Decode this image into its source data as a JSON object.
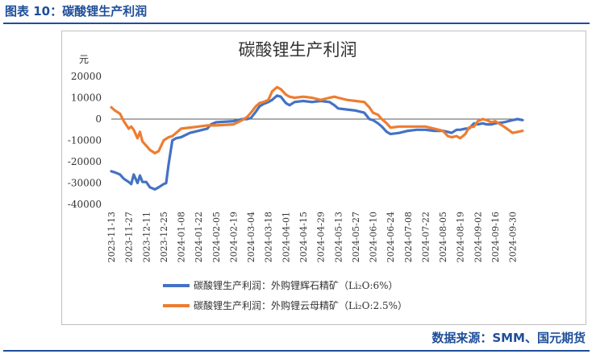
{
  "caption": "图表 10：碳酸锂生产利润",
  "source": "数据来源：SMM、国元期货",
  "colors": {
    "series1": "#4472C4",
    "series2": "#ED7D31",
    "axis": "#595959",
    "frame": "#bfbfbf",
    "accent": "#1f4e9a"
  },
  "chart_data": {
    "type": "line",
    "title": "碳酸锂生产利润",
    "ylabel": "元",
    "xlabel": "",
    "ylim": [
      -40000,
      20000
    ],
    "yticks": [
      -40000,
      -30000,
      -20000,
      -10000,
      0,
      10000,
      20000
    ],
    "ytick_labels": [
      "-40000",
      "-30000",
      "-20000",
      "-10000",
      "0",
      "10000",
      "20000"
    ],
    "x_range": [
      "2023-11-13",
      "2024-10-08"
    ],
    "xticks": [
      "2023-11-13",
      "2023-11-27",
      "2023-12-11",
      "2023-12-25",
      "2024-01-08",
      "2024-01-22",
      "2024-02-05",
      "2024-02-19",
      "2024-03-04",
      "2024-03-18",
      "2024-04-01",
      "2024-04-15",
      "2024-04-29",
      "2024-05-13",
      "2024-05-27",
      "2024-06-10",
      "2024-06-24",
      "2024-07-08",
      "2024-07-22",
      "2024-08-05",
      "2024-08-19",
      "2024-09-02",
      "2024-09-16",
      "2024-09-30"
    ],
    "grid": false,
    "legend_position": "bottom",
    "series": [
      {
        "name": "碳酸锂生产利润：外购锂辉石精矿（Li₂O:6%）",
        "color": "#4472C4",
        "x": [
          "2023-11-13",
          "2023-11-16",
          "2023-11-20",
          "2023-11-23",
          "2023-11-27",
          "2023-11-29",
          "2023-12-01",
          "2023-12-04",
          "2023-12-06",
          "2023-12-08",
          "2023-12-11",
          "2023-12-14",
          "2023-12-18",
          "2023-12-21",
          "2023-12-25",
          "2023-12-27",
          "2023-12-29",
          "2024-01-01",
          "2024-01-04",
          "2024-01-08",
          "2024-01-15",
          "2024-01-22",
          "2024-01-29",
          "2024-02-01",
          "2024-02-05",
          "2024-02-19",
          "2024-02-26",
          "2024-03-01",
          "2024-03-04",
          "2024-03-08",
          "2024-03-11",
          "2024-03-14",
          "2024-03-18",
          "2024-03-21",
          "2024-03-25",
          "2024-03-28",
          "2024-04-01",
          "2024-04-04",
          "2024-04-08",
          "2024-04-15",
          "2024-04-22",
          "2024-04-29",
          "2024-05-06",
          "2024-05-10",
          "2024-05-13",
          "2024-05-20",
          "2024-05-27",
          "2024-06-03",
          "2024-06-07",
          "2024-06-10",
          "2024-06-14",
          "2024-06-17",
          "2024-06-21",
          "2024-06-24",
          "2024-07-01",
          "2024-07-08",
          "2024-07-15",
          "2024-07-22",
          "2024-07-29",
          "2024-08-05",
          "2024-08-09",
          "2024-08-12",
          "2024-08-16",
          "2024-08-19",
          "2024-08-23",
          "2024-08-26",
          "2024-08-30",
          "2024-09-02",
          "2024-09-06",
          "2024-09-09",
          "2024-09-13",
          "2024-09-16",
          "2024-09-23",
          "2024-09-30",
          "2024-10-04",
          "2024-10-08"
        ],
        "y": [
          -24500,
          -25000,
          -26000,
          -28000,
          -29500,
          -30500,
          -26000,
          -30000,
          -26500,
          -29500,
          -29500,
          -32000,
          -33000,
          -32000,
          -30500,
          -30000,
          -21000,
          -10000,
          -9000,
          -8500,
          -6500,
          -5500,
          -4500,
          -2500,
          -1500,
          -1000,
          0,
          0,
          500,
          3500,
          6000,
          7000,
          8000,
          9000,
          11000,
          10500,
          7500,
          6500,
          8000,
          8500,
          8000,
          8500,
          8000,
          6500,
          5000,
          4500,
          4000,
          3000,
          0,
          -500,
          -2000,
          -3500,
          -6000,
          -7000,
          -6500,
          -5500,
          -5000,
          -5000,
          -5500,
          -5500,
          -6000,
          -6500,
          -5000,
          -5000,
          -4500,
          -4500,
          -2000,
          -2500,
          -2000,
          -2500,
          -2500,
          -2000,
          -1500,
          -500,
          0,
          -500
        ]
      },
      {
        "name": "碳酸锂生产利润：外购锂云母精矿（Li₂O:2.5%）",
        "color": "#ED7D31",
        "x": [
          "2023-11-13",
          "2023-11-16",
          "2023-11-20",
          "2023-11-23",
          "2023-11-27",
          "2023-11-29",
          "2023-12-01",
          "2023-12-04",
          "2023-12-06",
          "2023-12-08",
          "2023-12-11",
          "2023-12-14",
          "2023-12-18",
          "2023-12-21",
          "2023-12-25",
          "2023-12-29",
          "2024-01-01",
          "2024-01-08",
          "2024-01-15",
          "2024-01-22",
          "2024-01-29",
          "2024-02-01",
          "2024-02-05",
          "2024-02-19",
          "2024-02-26",
          "2024-03-01",
          "2024-03-04",
          "2024-03-08",
          "2024-03-11",
          "2024-03-14",
          "2024-03-18",
          "2024-03-21",
          "2024-03-25",
          "2024-03-28",
          "2024-04-01",
          "2024-04-04",
          "2024-04-08",
          "2024-04-15",
          "2024-04-22",
          "2024-04-29",
          "2024-05-06",
          "2024-05-10",
          "2024-05-13",
          "2024-05-20",
          "2024-05-27",
          "2024-06-03",
          "2024-06-07",
          "2024-06-10",
          "2024-06-14",
          "2024-06-17",
          "2024-06-21",
          "2024-06-24",
          "2024-07-01",
          "2024-07-08",
          "2024-07-15",
          "2024-07-22",
          "2024-07-29",
          "2024-08-05",
          "2024-08-09",
          "2024-08-12",
          "2024-08-16",
          "2024-08-19",
          "2024-08-23",
          "2024-08-26",
          "2024-08-30",
          "2024-09-02",
          "2024-09-06",
          "2024-09-09",
          "2024-09-13",
          "2024-09-16",
          "2024-09-23",
          "2024-09-30",
          "2024-10-04",
          "2024-10-08"
        ],
        "y": [
          5500,
          4000,
          2500,
          -1000,
          -4500,
          -3500,
          -5000,
          -9000,
          -6000,
          -10500,
          -12500,
          -14500,
          -16000,
          -15000,
          -10000,
          -8500,
          -8000,
          -4500,
          -4000,
          -3500,
          -3000,
          -3000,
          -3000,
          -2500,
          -500,
          1000,
          3000,
          6000,
          7500,
          8000,
          9000,
          13000,
          15000,
          14000,
          11500,
          10500,
          10000,
          10500,
          10000,
          9000,
          10000,
          10500,
          10000,
          9000,
          8500,
          8000,
          5500,
          3000,
          2000,
          0,
          -2000,
          -4000,
          -3500,
          -3500,
          -3500,
          -3500,
          -4500,
          -5500,
          -8000,
          -8500,
          -8000,
          -9000,
          -7000,
          -4000,
          -3500,
          -1000,
          0,
          -500,
          -1500,
          -1000,
          -3500,
          -6500,
          -6000,
          -5500
        ]
      }
    ]
  }
}
